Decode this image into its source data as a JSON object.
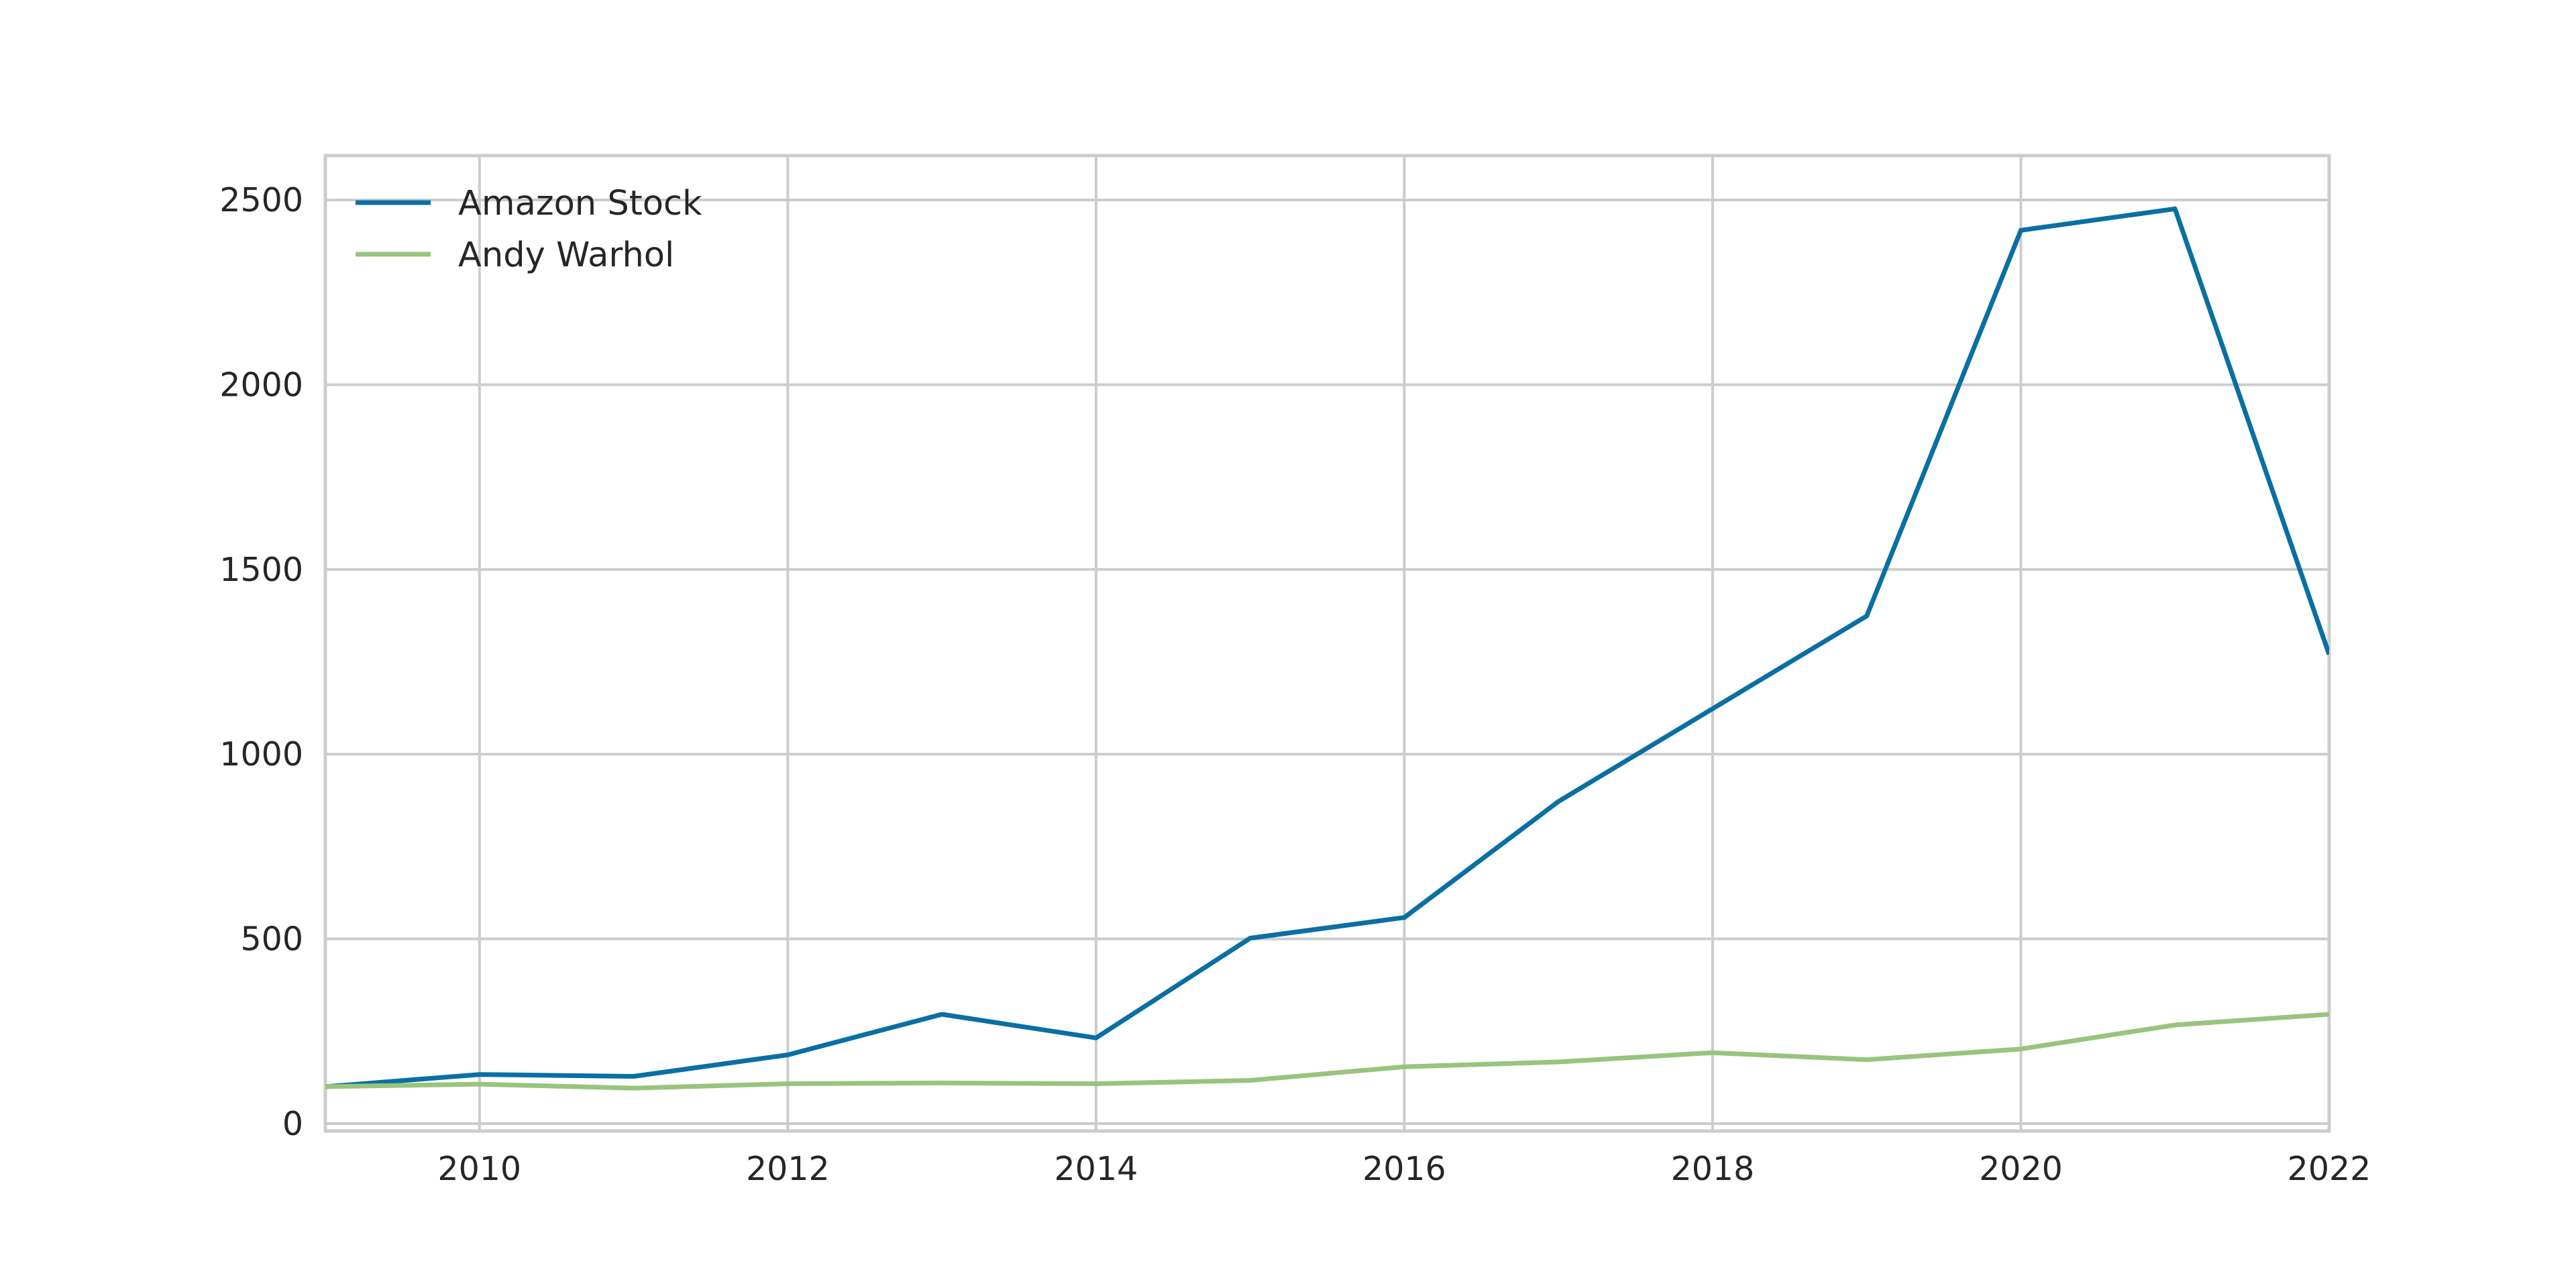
{
  "chart_data": {
    "type": "line",
    "title": "",
    "xlabel": "",
    "ylabel": "",
    "xlim": [
      2009,
      2022
    ],
    "ylim": [
      -20,
      2620
    ],
    "x": [
      2009,
      2010,
      2011,
      2012,
      2013,
      2014,
      2015,
      2016,
      2017,
      2018,
      2019,
      2020,
      2021,
      2022
    ],
    "x_ticks": [
      "2010",
      "2012",
      "2014",
      "2016",
      "2018",
      "2020",
      "2022"
    ],
    "y_ticks": [
      "0",
      "500",
      "1000",
      "1500",
      "2000",
      "2500"
    ],
    "grid": true,
    "legend_position": "upper-left",
    "series": [
      {
        "name": "Amazon Stock",
        "color": "#0a6fa3",
        "values": [
          100,
          133,
          128,
          186,
          296,
          232,
          502,
          558,
          872,
          1123,
          1374,
          2418,
          2476,
          1270
        ]
      },
      {
        "name": "Andy Warhol",
        "color": "#98c47e",
        "values": [
          100,
          107,
          96,
          108,
          110,
          108,
          117,
          154,
          167,
          192,
          173,
          202,
          267,
          296
        ]
      }
    ]
  }
}
